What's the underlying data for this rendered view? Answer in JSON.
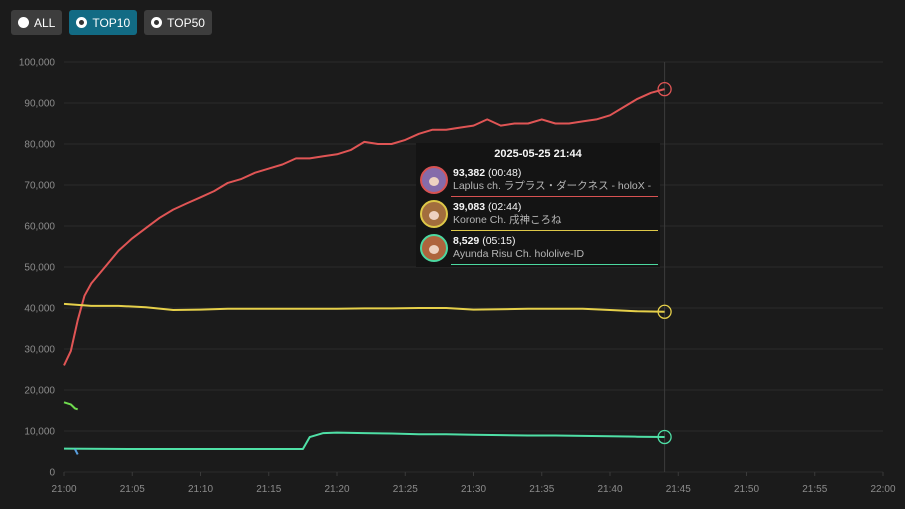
{
  "filters": [
    {
      "label": "ALL",
      "active": false
    },
    {
      "label": "TOP10",
      "active": true
    },
    {
      "label": "TOP50",
      "active": false
    }
  ],
  "tooltip": {
    "title": "2025-05-25 21:44",
    "rows": [
      {
        "value": "93,382",
        "time": "(00:48)",
        "name": "Laplus ch. ラプラス・ダークネス - holoX -",
        "color": "#e05555"
      },
      {
        "value": "39,083",
        "time": "(02:44)",
        "name": "Korone Ch. 戌神ころね",
        "color": "#e6d04a"
      },
      {
        "value": "8,529",
        "time": "(05:15)",
        "name": "Ayunda Risu Ch. hololive-ID",
        "color": "#4fe0a6"
      }
    ]
  },
  "chart_data": {
    "type": "line",
    "x_tick_labels": [
      "21:00",
      "21:05",
      "21:10",
      "21:15",
      "21:20",
      "21:25",
      "21:30",
      "21:35",
      "21:40",
      "21:45",
      "21:50",
      "21:55",
      "22:00"
    ],
    "y_tick_labels": [
      "0",
      "10,000",
      "20,000",
      "30,000",
      "40,000",
      "50,000",
      "60,000",
      "70,000",
      "80,000",
      "90,000",
      "100,000"
    ],
    "xlim": [
      "21:00",
      "22:00"
    ],
    "ylim": [
      0,
      100000
    ],
    "grid": true,
    "hover_time": "21:44",
    "series": [
      {
        "name": "Laplus ch. ラプラス・ダークネス - holoX -",
        "color": "#e05555",
        "points": [
          [
            "21:00",
            26000
          ],
          [
            "21:00.5",
            29500
          ],
          [
            "21:01",
            37000
          ],
          [
            "21:01.5",
            43000
          ],
          [
            "21:02",
            46000
          ],
          [
            "21:03",
            50000
          ],
          [
            "21:04",
            54000
          ],
          [
            "21:05",
            57000
          ],
          [
            "21:06",
            59500
          ],
          [
            "21:07",
            62000
          ],
          [
            "21:08",
            64000
          ],
          [
            "21:09",
            65500
          ],
          [
            "21:10",
            67000
          ],
          [
            "21:11",
            68500
          ],
          [
            "21:12",
            70500
          ],
          [
            "21:13",
            71500
          ],
          [
            "21:14",
            73000
          ],
          [
            "21:15",
            74000
          ],
          [
            "21:16",
            75000
          ],
          [
            "21:17",
            76500
          ],
          [
            "21:18",
            76500
          ],
          [
            "21:19",
            77000
          ],
          [
            "21:20",
            77500
          ],
          [
            "21:21",
            78500
          ],
          [
            "21:22",
            80500
          ],
          [
            "21:23",
            80000
          ],
          [
            "21:24",
            80000
          ],
          [
            "21:25",
            81000
          ],
          [
            "21:26",
            82500
          ],
          [
            "21:27",
            83500
          ],
          [
            "21:28",
            83500
          ],
          [
            "21:29",
            84000
          ],
          [
            "21:30",
            84500
          ],
          [
            "21:31",
            86000
          ],
          [
            "21:32",
            84500
          ],
          [
            "21:33",
            85000
          ],
          [
            "21:34",
            85000
          ],
          [
            "21:35",
            86000
          ],
          [
            "21:36",
            85000
          ],
          [
            "21:37",
            85000
          ],
          [
            "21:38",
            85500
          ],
          [
            "21:39",
            86000
          ],
          [
            "21:40",
            87000
          ],
          [
            "21:41",
            89000
          ],
          [
            "21:42",
            91000
          ],
          [
            "21:43",
            92500
          ],
          [
            "21:44",
            93382
          ]
        ]
      },
      {
        "name": "Korone Ch. 戌神ころね",
        "color": "#e6d04a",
        "points": [
          [
            "21:00",
            41000
          ],
          [
            "21:02",
            40500
          ],
          [
            "21:04",
            40500
          ],
          [
            "21:06",
            40200
          ],
          [
            "21:08",
            39500
          ],
          [
            "21:10",
            39600
          ],
          [
            "21:12",
            39800
          ],
          [
            "21:14",
            39800
          ],
          [
            "21:16",
            39800
          ],
          [
            "21:18",
            39800
          ],
          [
            "21:20",
            39800
          ],
          [
            "21:22",
            39900
          ],
          [
            "21:24",
            39900
          ],
          [
            "21:26",
            40000
          ],
          [
            "21:28",
            40000
          ],
          [
            "21:30",
            39600
          ],
          [
            "21:32",
            39700
          ],
          [
            "21:34",
            39800
          ],
          [
            "21:36",
            39800
          ],
          [
            "21:38",
            39800
          ],
          [
            "21:40",
            39500
          ],
          [
            "21:42",
            39200
          ],
          [
            "21:44",
            39083
          ]
        ]
      },
      {
        "name": "Ayunda Risu Ch. hololive-ID",
        "color": "#4fe0a6",
        "points": [
          [
            "21:00",
            5700
          ],
          [
            "21:05",
            5600
          ],
          [
            "21:10",
            5600
          ],
          [
            "21:15",
            5600
          ],
          [
            "21:17.5",
            5600
          ],
          [
            "21:18",
            8500
          ],
          [
            "21:19",
            9500
          ],
          [
            "21:20",
            9600
          ],
          [
            "21:22",
            9500
          ],
          [
            "21:24",
            9400
          ],
          [
            "21:26",
            9200
          ],
          [
            "21:28",
            9200
          ],
          [
            "21:30",
            9100
          ],
          [
            "21:32",
            9000
          ],
          [
            "21:34",
            8900
          ],
          [
            "21:36",
            8900
          ],
          [
            "21:38",
            8800
          ],
          [
            "21:40",
            8700
          ],
          [
            "21:42",
            8600
          ],
          [
            "21:44",
            8529
          ]
        ]
      },
      {
        "color": "#6fdc4e",
        "points": [
          [
            "21:00",
            17000
          ],
          [
            "21:00.5",
            16500
          ],
          [
            "21:00.8",
            15500
          ],
          [
            "21:01",
            15300
          ]
        ]
      },
      {
        "color": "#5aa0e0",
        "points": [
          [
            "21:00.8",
            5600
          ],
          [
            "21:01",
            4300
          ]
        ]
      }
    ]
  }
}
